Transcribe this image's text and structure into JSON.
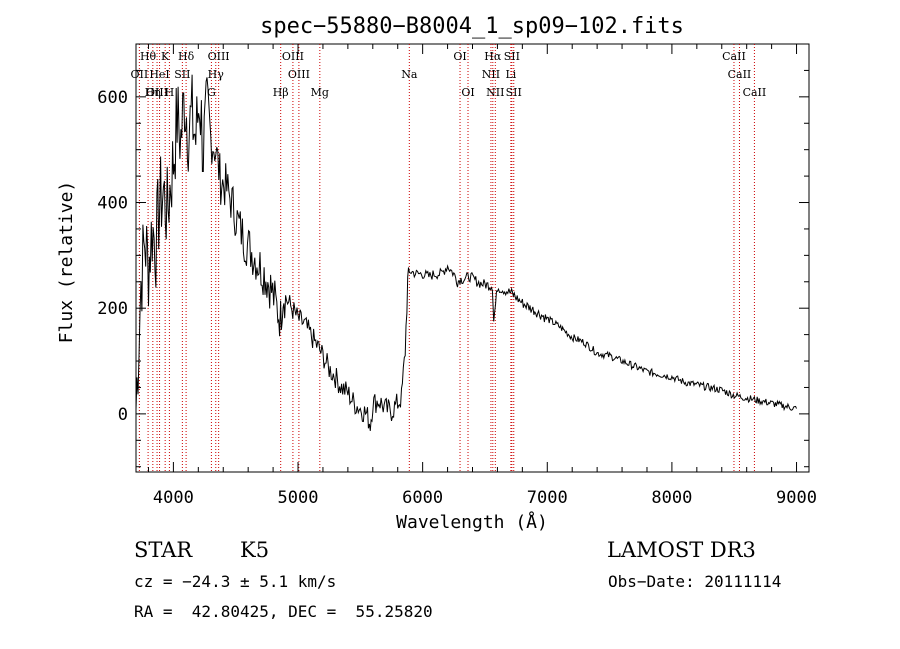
{
  "chart_data": {
    "type": "line",
    "title": "spec−55880−B8004_1_sp09−102.fits",
    "xlabel": "Wavelength (Å)",
    "ylabel": "Flux (relative)",
    "xlim": [
      3700,
      9100
    ],
    "ylim": [
      -110,
      700
    ],
    "x_ticks": [
      4000,
      5000,
      6000,
      7000,
      8000,
      9000
    ],
    "x_tick_labels": [
      "4000",
      "5000",
      "6000",
      "7000",
      "8000",
      "9000"
    ],
    "y_ticks": [
      0,
      200,
      400,
      600
    ],
    "y_tick_labels": [
      "0",
      "200",
      "400",
      "600"
    ],
    "grid": false,
    "series": [
      {
        "name": "spectrum",
        "x": [
          3700,
          3740,
          3770,
          3800,
          3830,
          3860,
          3890,
          3920,
          3950,
          3980,
          4000,
          4030,
          4060,
          4090,
          4120,
          4150,
          4180,
          4210,
          4240,
          4270,
          4300,
          4340,
          4380,
          4420,
          4470,
          4520,
          4570,
          4620,
          4670,
          4720,
          4780,
          4830,
          4860,
          4880,
          4900,
          4950,
          5000,
          5050,
          5100,
          5150,
          5200,
          5250,
          5300,
          5350,
          5400,
          5450,
          5500,
          5550,
          5580,
          5600,
          5650,
          5700,
          5750,
          5800,
          5830,
          5860,
          5880,
          5900,
          5950,
          6000,
          6050,
          6100,
          6150,
          6200,
          6250,
          6280,
          6300,
          6330,
          6380,
          6450,
          6500,
          6560,
          6570,
          6600,
          6650,
          6700,
          6720,
          6750,
          6800,
          6900,
          7000,
          7100,
          7200,
          7300,
          7400,
          7500,
          7600,
          7700,
          7800,
          7900,
          8000,
          8100,
          8200,
          8300,
          8400,
          8500,
          8600,
          8700,
          8800,
          8900,
          9000
        ],
        "y": [
          10,
          250,
          330,
          280,
          350,
          320,
          400,
          420,
          380,
          440,
          480,
          560,
          520,
          600,
          540,
          560,
          520,
          600,
          500,
          560,
          520,
          500,
          440,
          430,
          400,
          360,
          330,
          310,
          290,
          270,
          240,
          200,
          180,
          230,
          220,
          200,
          180,
          170,
          150,
          130,
          110,
          85,
          70,
          50,
          40,
          20,
          10,
          0,
          -20,
          20,
          25,
          10,
          5,
          20,
          30,
          120,
          250,
          270,
          265,
          265,
          260,
          265,
          265,
          280,
          265,
          250,
          255,
          255,
          260,
          248,
          245,
          242,
          175,
          240,
          235,
          230,
          228,
          220,
          210,
          195,
          180,
          165,
          145,
          135,
          115,
          110,
          100,
          90,
          80,
          75,
          70,
          60,
          55,
          50,
          45,
          35,
          30,
          25,
          20,
          15,
          10
        ]
      }
    ],
    "spectral_lines": [
      {
        "label": "Hθ",
        "wavelength": 3797,
        "row": 0
      },
      {
        "label": "K",
        "wavelength": 3934,
        "row": 0
      },
      {
        "label": "Hδ",
        "wavelength": 4102,
        "row": 0
      },
      {
        "label": "OIII",
        "wavelength": 4363,
        "row": 0
      },
      {
        "label": "OIII",
        "wavelength": 4959,
        "row": 0
      },
      {
        "label": "OI",
        "wavelength": 6300,
        "row": 0
      },
      {
        "label": "Hα",
        "wavelength": 6563,
        "row": 0
      },
      {
        "label": "SII",
        "wavelength": 6716,
        "row": 0
      },
      {
        "label": "CaII",
        "wavelength": 8498,
        "row": 0
      },
      {
        "label": "OII",
        "wavelength": 3727,
        "row": 1
      },
      {
        "label": "HeI",
        "wavelength": 3889,
        "row": 1
      },
      {
        "label": "SII",
        "wavelength": 4072,
        "row": 1
      },
      {
        "label": "Hγ",
        "wavelength": 4340,
        "row": 1
      },
      {
        "label": "OIII",
        "wavelength": 5007,
        "row": 1
      },
      {
        "label": "Na",
        "wavelength": 5893,
        "row": 1
      },
      {
        "label": "NII",
        "wavelength": 6548,
        "row": 1
      },
      {
        "label": "Li",
        "wavelength": 6708,
        "row": 1
      },
      {
        "label": "CaII",
        "wavelength": 8542,
        "row": 1
      },
      {
        "label": "OIII",
        "wavelength": 3869,
        "row": 2
      },
      {
        "label": "Hη",
        "wavelength": 3835,
        "row": 2
      },
      {
        "label": "H",
        "wavelength": 3968,
        "row": 2
      },
      {
        "label": "G",
        "wavelength": 4305,
        "row": 2
      },
      {
        "label": "Hβ",
        "wavelength": 4861,
        "row": 2
      },
      {
        "label": "Mg",
        "wavelength": 5175,
        "row": 2
      },
      {
        "label": "OI",
        "wavelength": 6364,
        "row": 2
      },
      {
        "label": "NII",
        "wavelength": 6583,
        "row": 2
      },
      {
        "label": "SII",
        "wavelength": 6731,
        "row": 2
      },
      {
        "label": "CaII",
        "wavelength": 8662,
        "row": 2
      }
    ]
  },
  "info": {
    "class_label": "STAR",
    "subclass": "K5",
    "survey": "LAMOST DR3",
    "cz": "cz = −24.3 ± 5.1 km/s",
    "obs_date": "Obs−Date: 20111114",
    "coords": "RA =  42.80425, DEC =  55.25820"
  },
  "colors": {
    "line": "#000000",
    "marker": "#cc0000",
    "text": "#000000"
  }
}
